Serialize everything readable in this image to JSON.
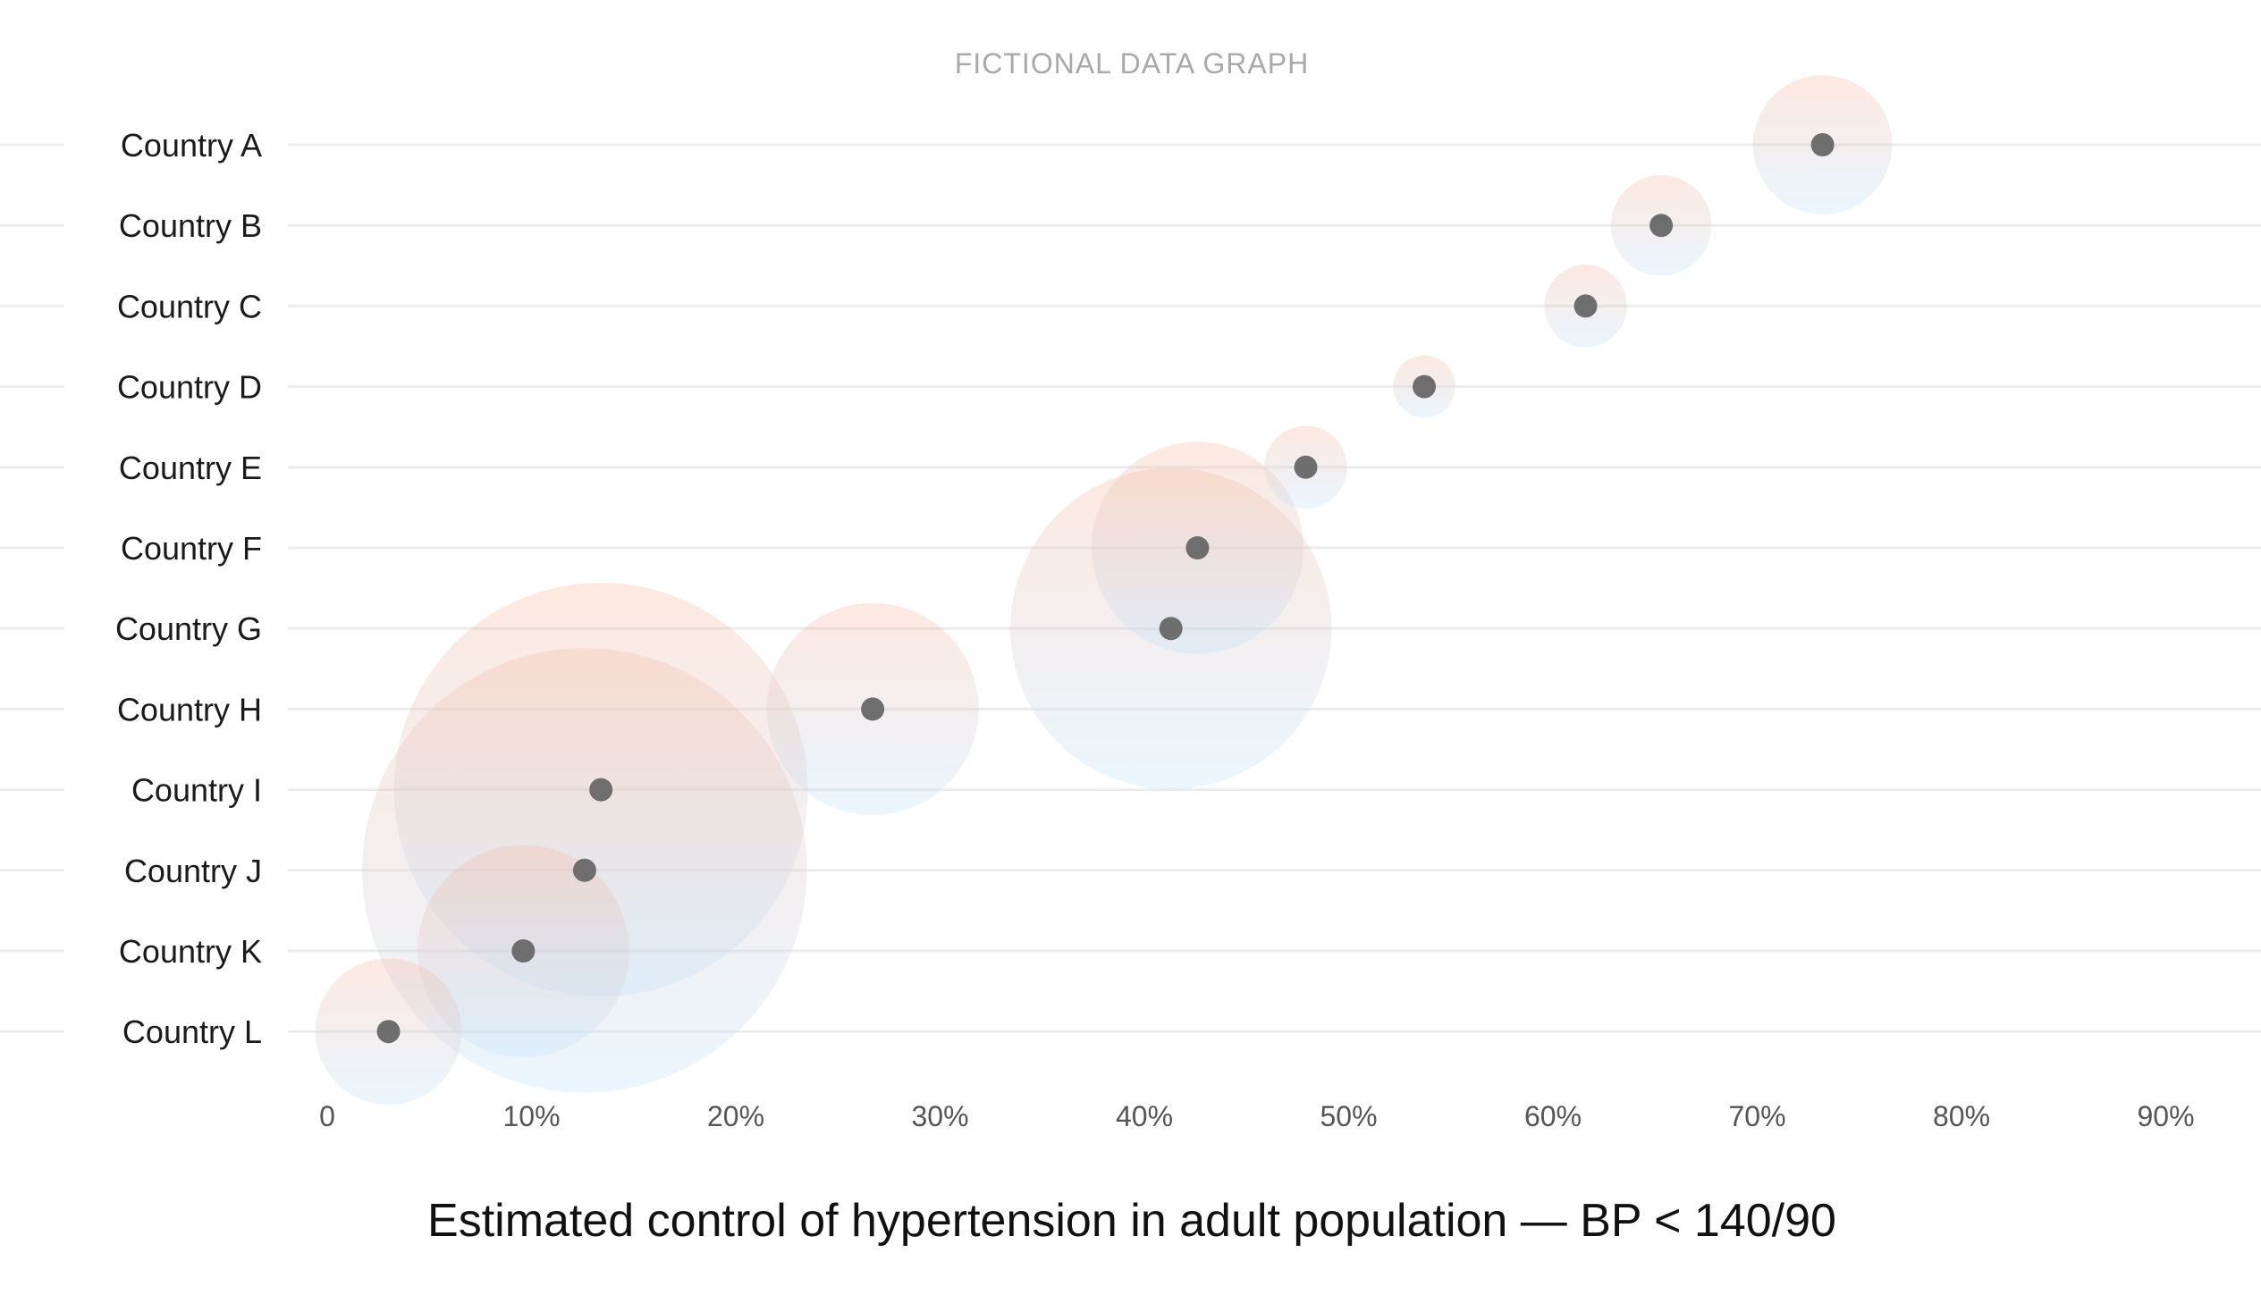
{
  "graph_title": "FICTIONAL DATA GRAPH",
  "chart_data": {
    "type": "scatter",
    "subtype": "bubble",
    "title": "FICTIONAL DATA GRAPH",
    "xlabel": "Estimated control of hypertension in adult population — BP < 140/90",
    "ylabel": "",
    "categories": [
      "Country A",
      "Country B",
      "Country C",
      "Country D",
      "Country E",
      "Country F",
      "Country G",
      "Country H",
      "Country I",
      "Country J",
      "Country K",
      "Country L"
    ],
    "x_ticks": [
      "0",
      "10%",
      "20%",
      "30%",
      "40%",
      "50%",
      "60%",
      "70%",
      "80%",
      "90%"
    ],
    "xlim": [
      0,
      90
    ],
    "x_unit": "%",
    "points": [
      {
        "category": "Country A",
        "x": 73.2,
        "bubble_size": 6.5
      },
      {
        "category": "Country B",
        "x": 65.3,
        "bubble_size": 3.4
      },
      {
        "category": "Country C",
        "x": 61.6,
        "bubble_size": 2.3
      },
      {
        "category": "Country D",
        "x": 53.7,
        "bubble_size": 1.3
      },
      {
        "category": "Country E",
        "x": 47.9,
        "bubble_size": 2.3
      },
      {
        "category": "Country F",
        "x": 42.6,
        "bubble_size": 15.1
      },
      {
        "category": "Country G",
        "x": 41.3,
        "bubble_size": 34.7
      },
      {
        "category": "Country H",
        "x": 26.7,
        "bubble_size": 15.1
      },
      {
        "category": "Country I",
        "x": 13.4,
        "bubble_size": 57.6
      },
      {
        "category": "Country J",
        "x": 12.6,
        "bubble_size": 66.5
      },
      {
        "category": "Country K",
        "x": 9.6,
        "bubble_size": 15.1
      },
      {
        "category": "Country L",
        "x": 3.0,
        "bubble_size": 7.2
      }
    ],
    "grid": true,
    "legend": "none",
    "colors": {
      "bubble_top": "#f7b9a1",
      "bubble_bottom": "#bfe1fb",
      "dot": "#6e6e6e",
      "gridline": "#ececec",
      "row_label": "#1a1a1a",
      "tick_label": "#555555",
      "title": "#a9a9a9",
      "caption": "#111111"
    }
  }
}
